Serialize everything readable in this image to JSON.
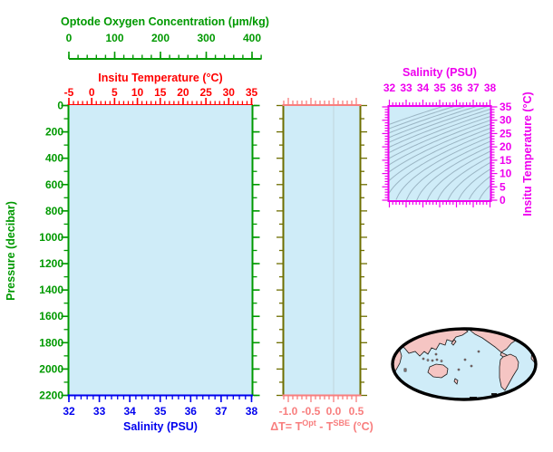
{
  "chart_data": {
    "type": "line",
    "description": "Argo float profile plot template: pressure profile panel (oxygen/temperature/salinity axes, no data plotted), delta-T panel, T-S diagram with sigma-t isopycnal contours, and Pacific-centered world map",
    "colors": {
      "green": "#009900",
      "red": "#FF0000",
      "blue": "#0000EE",
      "salmon": "#F87E7E",
      "olive": "#6E6E00",
      "magenta": "#EE00EE",
      "panel_fill": "#CFECF8",
      "contour": "#92ABBB",
      "zero_grid": "#C4D9E0",
      "map_land": "#F5C5C3",
      "map_ocean": "#CFECF8",
      "map_outline": "#000000"
    },
    "profile_panel": {
      "oxygen_axis": {
        "title": "Optode Oxygen Concentration (μm/kg)",
        "ticks": [
          0,
          100,
          200,
          300,
          400
        ],
        "minor_step": 20,
        "range": [
          0,
          420
        ],
        "position": "floating-top"
      },
      "temperature_axis": {
        "title": "Insitu Temperature (°C)",
        "ticks": [
          -5,
          0,
          5,
          10,
          15,
          20,
          25,
          30,
          35
        ],
        "minor_step": 1,
        "range": [
          -5,
          35
        ],
        "position": "top"
      },
      "salinity_axis": {
        "title": "Salinity (PSU)",
        "ticks": [
          32,
          33,
          34,
          35,
          36,
          37,
          38
        ],
        "minor_step": 0.2,
        "range": [
          32,
          38
        ],
        "position": "bottom"
      },
      "pressure_axis": {
        "title": "Pressure (decibar)",
        "ticks": [
          0,
          200,
          400,
          600,
          800,
          1000,
          1200,
          1400,
          1600,
          1800,
          2000,
          2200
        ],
        "minor_step": 100,
        "range": [
          0,
          2200
        ],
        "direction": "increasing-downward",
        "position": "left-and-right"
      },
      "series": []
    },
    "delta_panel": {
      "x_axis": {
        "title_parts": {
          "p1": "ΔT= T",
          "sup1": "Opt",
          "p2": " - T",
          "sup2": "SBE",
          "p3": " (°C)"
        },
        "tick_labels": [
          "-1.0",
          "-0.5",
          "0.0",
          "0.5"
        ],
        "minor_step": 0.1,
        "range": [
          -1.11,
          0.59
        ],
        "zero_line": 0.0
      },
      "y_axis": {
        "shared_with": "pressure_axis",
        "minor_step": 100,
        "major_step": 200
      },
      "series": []
    },
    "ts_panel": {
      "salinity_axis": {
        "title": "Salinity (PSU)",
        "ticks": [
          32,
          33,
          34,
          35,
          36,
          37,
          38
        ],
        "minor_step": 0.2,
        "range": [
          32,
          38
        ],
        "position": "top"
      },
      "temperature_axis": {
        "title": "Insitu Temperature (°C)",
        "ticks": [
          0,
          5,
          10,
          15,
          20,
          25,
          30,
          35
        ],
        "minor_step": 1,
        "range": [
          0,
          35
        ],
        "position": "right"
      },
      "isopycnal_contours": {
        "quantity": "sigma-t",
        "level_start": 20,
        "level_end": 30.5,
        "level_step": 0.5
      },
      "series": []
    },
    "map_panel": {
      "projection": "pacific-centered-ellipse",
      "features": [
        "Eurasia",
        "Africa",
        "Australia",
        "North America",
        "South America",
        "Greenland",
        "islands"
      ]
    }
  }
}
